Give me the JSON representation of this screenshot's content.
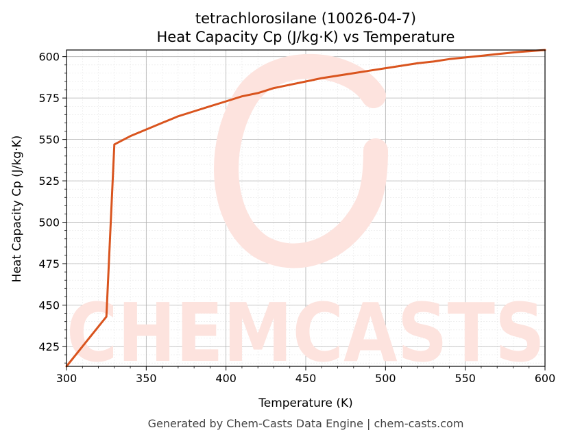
{
  "chart_data": {
    "type": "line",
    "title": "tetrachlorosilane (10026-04-7)",
    "subtitle": "Heat Capacity Cp (J/kg·K) vs Temperature",
    "xlabel": "Temperature (K)",
    "ylabel": "Heat Capacity Cp (J/kg·K)",
    "xlim": [
      300,
      600
    ],
    "ylim": [
      413,
      604
    ],
    "xticks": [
      300,
      350,
      400,
      450,
      500,
      550,
      600
    ],
    "yticks": [
      425,
      450,
      475,
      500,
      525,
      550,
      575,
      600
    ],
    "grid": true,
    "line_color": "#d9541e",
    "series": [
      {
        "x": [
          300,
          325,
          330,
          340,
          350,
          360,
          370,
          380,
          390,
          400,
          410,
          420,
          430,
          440,
          450,
          460,
          470,
          480,
          490,
          500,
          510,
          520,
          530,
          540,
          550,
          560,
          570,
          580,
          590,
          600
        ],
        "values": [
          413,
          443,
          547,
          552,
          556,
          560,
          564,
          567,
          570,
          573,
          576,
          578,
          581,
          583,
          585,
          587,
          588.5,
          590,
          591.5,
          593,
          594.5,
          596,
          597,
          598.5,
          599.5,
          600.5,
          601.5,
          602.5,
          603.3,
          604
        ]
      }
    ]
  },
  "watermark": {
    "text": "CHEMCASTS",
    "color": "#fde3de"
  },
  "footer": "Generated by Chem-Casts Data Engine | chem-casts.com"
}
